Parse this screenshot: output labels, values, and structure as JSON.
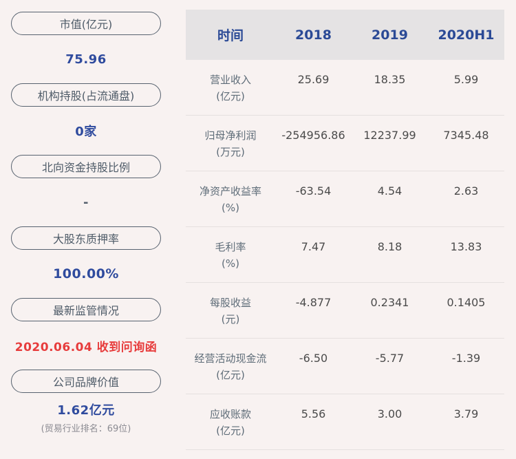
{
  "colors": {
    "background": "#f8f2f1",
    "pill_border": "#57626f",
    "pill_text": "#4e5b68",
    "blue": "#2f4b9e",
    "red": "#e73c3c",
    "slate": "#55606c",
    "gray_caption": "#8b8b92",
    "header_bg": "#e5e3e4",
    "header_text": "#2b4a96",
    "row_label": "#5e6c78",
    "row_value": "#4b4b4b"
  },
  "sidebar": {
    "stats": [
      {
        "label": "市值(亿元)",
        "value": "75.96"
      },
      {
        "label": "机构持股(占流通盘)",
        "value": "0家"
      },
      {
        "label": "北向资金持股比例",
        "value": "-"
      },
      {
        "label": "大股东质押率",
        "value": "100.00%"
      },
      {
        "label": "最新监管情况",
        "value": "2020.06.04 收到问询函"
      },
      {
        "label": "公司品牌价值",
        "value": "1.62亿元",
        "sub_value": "(贸易行业排名：69位)"
      }
    ]
  },
  "table": {
    "header": {
      "time_label": "时间",
      "col_2018": "2018",
      "col_2019": "2019",
      "col_2020h1": "2020H1"
    },
    "rows": [
      {
        "label": "营业收入",
        "unit": "(亿元)",
        "values": [
          "25.69",
          "18.35",
          "5.99"
        ]
      },
      {
        "label": "归母净利润",
        "unit": "(万元)",
        "values": [
          "-254956.86",
          "12237.99",
          "7345.48"
        ]
      },
      {
        "label": "净资产收益率",
        "unit": "(%)",
        "values": [
          "-63.54",
          "4.54",
          "2.63"
        ]
      },
      {
        "label": "毛利率",
        "unit": "(%)",
        "values": [
          "7.47",
          "8.18",
          "13.83"
        ]
      },
      {
        "label": "每股收益",
        "unit": "(元)",
        "values": [
          "-4.877",
          "0.2341",
          "0.1405"
        ]
      },
      {
        "label": "经营活动现金流",
        "unit": "(亿元)",
        "values": [
          "-6.50",
          "-5.77",
          "-1.39"
        ]
      },
      {
        "label": "应收账款",
        "unit": "(亿元)",
        "values": [
          "5.56",
          "3.00",
          "3.79"
        ]
      }
    ]
  },
  "chart_data": {
    "type": "table",
    "title": "",
    "columns": [
      "时间",
      "2018",
      "2019",
      "2020H1"
    ],
    "rows": [
      [
        "营业收入(亿元)",
        25.69,
        18.35,
        5.99
      ],
      [
        "归母净利润(万元)",
        -254956.86,
        12237.99,
        7345.48
      ],
      [
        "净资产收益率(%)",
        -63.54,
        4.54,
        2.63
      ],
      [
        "毛利率(%)",
        7.47,
        8.18,
        13.83
      ],
      [
        "每股收益(元)",
        -4.877,
        0.2341,
        0.1405
      ],
      [
        "经营活动现金流(亿元)",
        -6.5,
        -5.77,
        -1.39
      ],
      [
        "应收账款(亿元)",
        5.56,
        3.0,
        3.79
      ]
    ],
    "side_stats": {
      "市值(亿元)": "75.96",
      "机构持股(占流通盘)": "0家",
      "北向资金持股比例": "-",
      "大股东质押率": "100.00%",
      "最新监管情况": "2020.06.04 收到问询函",
      "公司品牌价值": "1.62亿元",
      "公司品牌价值排名": "(贸易行业排名：69位)"
    }
  }
}
